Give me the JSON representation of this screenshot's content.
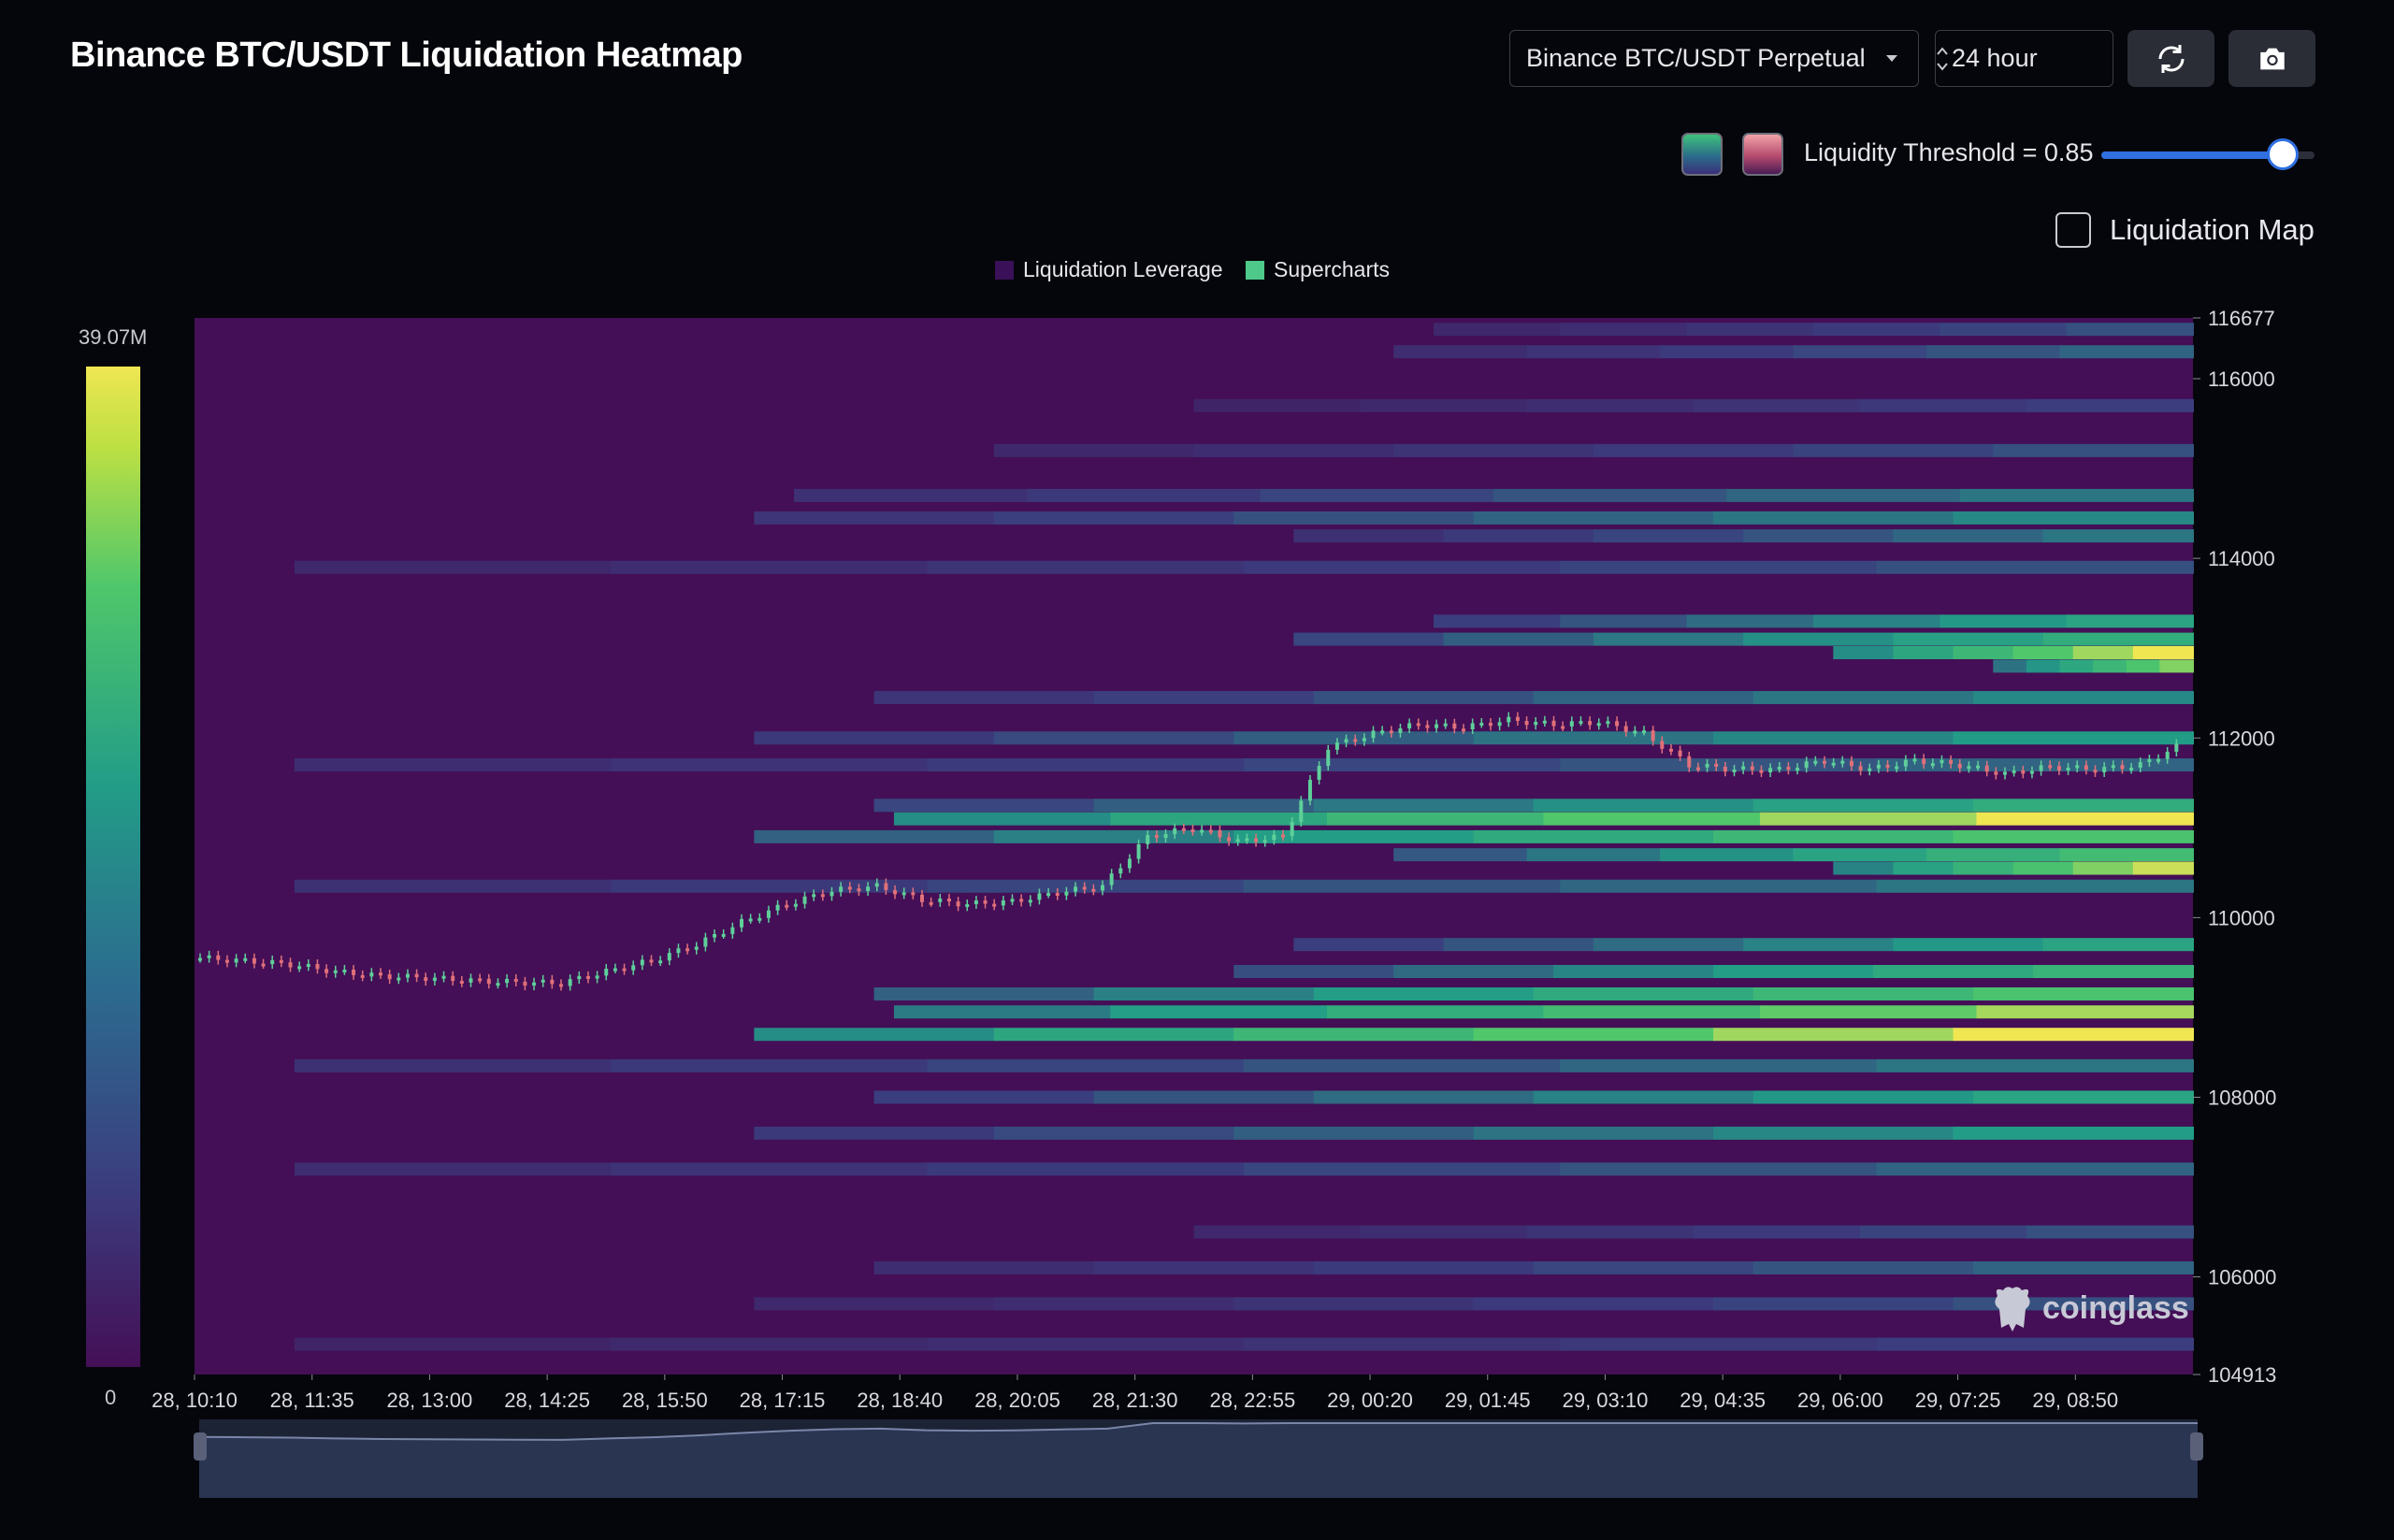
{
  "header": {
    "title": "Binance BTC/USDT Liquidation Heatmap",
    "exchange_select": "Binance BTC/USDT Perpetual",
    "period_select": "24 hour",
    "refresh_icon": "refresh-icon",
    "camera_icon": "camera-icon"
  },
  "controls": {
    "threshold_label": "Liquidity Threshold = 0.85",
    "threshold_value": 0.85,
    "swatch_green": "#3fc27c",
    "swatch_red": "#e48a98",
    "liquidation_map_label": "Liquidation Map",
    "liquidation_map_checked": false
  },
  "legend": [
    {
      "label": "Liquidation Leverage",
      "color": "#3a1058"
    },
    {
      "label": "Supercharts",
      "color": "#4fc98a"
    }
  ],
  "colorbar": {
    "max_label": "39.07M",
    "min_label": "0"
  },
  "watermark": "coinglass",
  "chart_data": {
    "type": "heatmap",
    "y_ticks": [
      "116677",
      "116000",
      "114000",
      "112000",
      "110000",
      "108000",
      "106000",
      "104913"
    ],
    "ylim": [
      104913,
      116677
    ],
    "x_ticks": [
      "28, 10:10",
      "28, 11:35",
      "28, 13:00",
      "28, 14:25",
      "28, 15:50",
      "28, 17:15",
      "28, 18:40",
      "28, 20:05",
      "28, 21:30",
      "28, 22:55",
      "29, 00:20",
      "29, 01:45",
      "29, 03:10",
      "29, 04:35",
      "29, 06:00",
      "29, 07:25",
      "29, 08:50"
    ],
    "colorscale_max": "39.07M",
    "colors": {
      "background": "#440f56",
      "low": "#3b3d7e",
      "mid": "#229c87",
      "high": "#4fc76b",
      "peak": "#efe652"
    },
    "price_series": {
      "name": "BTC/USDT",
      "x_index_range": [
        0,
        23.5
      ],
      "values": [
        109550,
        109520,
        109480,
        109400,
        109350,
        109330,
        109300,
        109280,
        109270,
        109400,
        109520,
        109700,
        109950,
        110150,
        110300,
        110350,
        110200,
        110150,
        110180,
        110280,
        110350,
        110900,
        111000,
        110850,
        110900,
        111900,
        112050,
        112150,
        112120,
        112200,
        112150,
        112180,
        112050,
        111700,
        111650,
        111650,
        111750,
        111650,
        111750,
        111700,
        111600,
        111680,
        111650,
        111700,
        111950
      ]
    },
    "liquidation_bands": [
      {
        "price": 116550,
        "start": 0.62,
        "intensity": 0.3
      },
      {
        "price": 116300,
        "start": 0.6,
        "intensity": 0.35
      },
      {
        "price": 115700,
        "start": 0.5,
        "intensity": 0.25
      },
      {
        "price": 115200,
        "start": 0.4,
        "intensity": 0.3
      },
      {
        "price": 114700,
        "start": 0.3,
        "intensity": 0.4
      },
      {
        "price": 114450,
        "start": 0.28,
        "intensity": 0.45
      },
      {
        "price": 114250,
        "start": 0.55,
        "intensity": 0.4
      },
      {
        "price": 113900,
        "start": 0.05,
        "intensity": 0.3
      },
      {
        "price": 113300,
        "start": 0.62,
        "intensity": 0.55
      },
      {
        "price": 113100,
        "start": 0.55,
        "intensity": 0.6
      },
      {
        "price": 112950,
        "start": 0.82,
        "intensity": 1.0
      },
      {
        "price": 112800,
        "start": 0.9,
        "intensity": 0.85
      },
      {
        "price": 112450,
        "start": 0.34,
        "intensity": 0.45
      },
      {
        "price": 112000,
        "start": 0.28,
        "intensity": 0.5
      },
      {
        "price": 111700,
        "start": 0.05,
        "intensity": 0.35
      },
      {
        "price": 111250,
        "start": 0.34,
        "intensity": 0.6
      },
      {
        "price": 111100,
        "start": 0.35,
        "intensity": 1.0
      },
      {
        "price": 110900,
        "start": 0.28,
        "intensity": 0.75
      },
      {
        "price": 110700,
        "start": 0.6,
        "intensity": 0.7
      },
      {
        "price": 110550,
        "start": 0.82,
        "intensity": 0.95
      },
      {
        "price": 110350,
        "start": 0.05,
        "intensity": 0.4
      },
      {
        "price": 109700,
        "start": 0.55,
        "intensity": 0.55
      },
      {
        "price": 109400,
        "start": 0.52,
        "intensity": 0.65
      },
      {
        "price": 109150,
        "start": 0.34,
        "intensity": 0.75
      },
      {
        "price": 108950,
        "start": 0.35,
        "intensity": 0.9
      },
      {
        "price": 108700,
        "start": 0.28,
        "intensity": 1.0
      },
      {
        "price": 108350,
        "start": 0.05,
        "intensity": 0.4
      },
      {
        "price": 108000,
        "start": 0.34,
        "intensity": 0.55
      },
      {
        "price": 107600,
        "start": 0.28,
        "intensity": 0.5
      },
      {
        "price": 107200,
        "start": 0.05,
        "intensity": 0.35
      },
      {
        "price": 106500,
        "start": 0.5,
        "intensity": 0.3
      },
      {
        "price": 106100,
        "start": 0.34,
        "intensity": 0.35
      },
      {
        "price": 105700,
        "start": 0.28,
        "intensity": 0.3
      },
      {
        "price": 105250,
        "start": 0.05,
        "intensity": 0.25
      }
    ]
  }
}
